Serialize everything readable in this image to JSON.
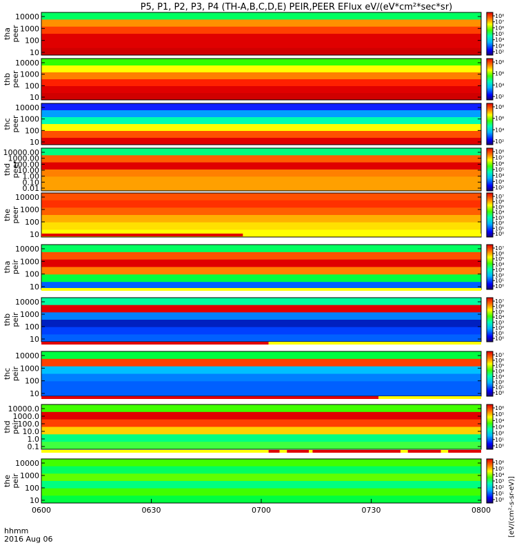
{
  "chart_data": {
    "type": "heatmap",
    "title": "P5, P1, P2, P3, P4 (TH-A,B,C,D,E) PEIR,PEER EFlux eV/(eV*cm²*sec*sr)",
    "colorbar_label": "[eV/(cm²-s-sr-eV)]",
    "x_axis": {
      "ticks": [
        "0600",
        "0630",
        "0700",
        "0730",
        "0800"
      ],
      "minutes": [
        0,
        30,
        60,
        90,
        120
      ],
      "range": [
        0,
        120
      ],
      "label_line1": "hhmm",
      "label_line2": "2016 Aug 06"
    },
    "panels": [
      {
        "name": "tha_peer",
        "probe": "tha",
        "species": "peer",
        "yticks": [
          "10000",
          "1000",
          "100",
          "10"
        ],
        "cbar_ticks": [
          "10⁸",
          "10⁷",
          "10⁶",
          "10⁵",
          "10⁴",
          "10³",
          "10²"
        ]
      },
      {
        "name": "thb_peer",
        "probe": "thb",
        "species": "peer",
        "yticks": [
          "10000",
          "1000",
          "100",
          "10"
        ],
        "cbar_ticks": [
          "10⁸",
          "10⁶",
          "10⁴",
          "10²"
        ]
      },
      {
        "name": "thc_peer",
        "probe": "thc",
        "species": "peer",
        "yticks": [
          "10000",
          "1000",
          "100",
          "10"
        ],
        "cbar_ticks": [
          "10⁸",
          "10⁶",
          "10⁴",
          "10²"
        ]
      },
      {
        "name": "thd_peer",
        "probe": "thd",
        "species": "peer",
        "yticks": [
          "10000.00",
          "1000.00",
          "100.00",
          "10.00",
          "1.00",
          "0.10",
          "0.01"
        ],
        "cbar_ticks": [
          "10⁸",
          "10⁷",
          "10⁶",
          "10⁵",
          "10⁴",
          "10³",
          "10²"
        ]
      },
      {
        "name": "the_peer",
        "probe": "the",
        "species": "peer",
        "yticks": [
          "10000",
          "1000",
          "100",
          "10"
        ],
        "cbar_ticks": [
          "10⁷",
          "10⁶",
          "10⁵",
          "10⁴",
          "10³",
          "10²",
          "10¹",
          "10⁰"
        ]
      },
      {
        "name": "tha_peir",
        "probe": "tha",
        "species": "peir",
        "yticks": [
          "10000",
          "1000",
          "100",
          "10"
        ],
        "cbar_ticks": [
          "10⁷",
          "10⁶",
          "10⁵",
          "10⁴",
          "10³",
          "10²",
          "10¹",
          "10⁰"
        ]
      },
      {
        "name": "thb_peir",
        "probe": "thb",
        "species": "peir",
        "yticks": [
          "10000",
          "1000",
          "100",
          "10"
        ],
        "cbar_ticks": [
          "10⁷",
          "10⁶",
          "10⁵",
          "10⁴",
          "10³",
          "10²",
          "10¹",
          "10⁰"
        ]
      },
      {
        "name": "thc_peir",
        "probe": "thc",
        "species": "peir",
        "yticks": [
          "10000",
          "1000",
          "100",
          "10"
        ],
        "cbar_ticks": [
          "10⁷",
          "10⁶",
          "10⁵",
          "10⁴",
          "10³",
          "10²",
          "10¹",
          "10⁰"
        ]
      },
      {
        "name": "thd_peir",
        "probe": "thd",
        "species": "peir",
        "yticks": [
          "10000.0",
          "1000.0",
          "100.0",
          "10.0",
          "1.0",
          "0.1"
        ],
        "cbar_ticks": [
          "10⁶",
          "10⁵",
          "10⁴",
          "10³",
          "10²",
          "10¹",
          "10⁰"
        ]
      },
      {
        "name": "the_peir",
        "probe": "the",
        "species": "peir",
        "yticks": [
          "10000",
          "1000",
          "100",
          "10"
        ],
        "cbar_ticks": [
          "10⁶",
          "10⁵",
          "10⁴",
          "10³",
          "10²",
          "10¹",
          "10⁰"
        ]
      }
    ],
    "mode_bars": [
      {
        "after_panel": "the_peer",
        "segments": [
          {
            "color": "#e00000",
            "start_min": 0,
            "end_min": 55
          },
          {
            "color": "#ffff00",
            "start_min": 55,
            "end_min": 120
          }
        ]
      },
      {
        "after_panel": "tha_peir",
        "segments": [
          {
            "color": "#ffff00",
            "start_min": 0,
            "end_min": 120
          }
        ]
      },
      {
        "after_panel": "thb_peir",
        "segments": [
          {
            "color": "#e00000",
            "start_min": 0,
            "end_min": 62
          },
          {
            "color": "#ffff00",
            "start_min": 62,
            "end_min": 120
          }
        ]
      },
      {
        "after_panel": "thc_peir",
        "segments": [
          {
            "color": "#e00000",
            "start_min": 0,
            "end_min": 92
          },
          {
            "color": "#ffff00",
            "start_min": 92,
            "end_min": 120
          }
        ]
      },
      {
        "after_panel": "thd_peir",
        "segments": [
          {
            "color": "#ffff00",
            "start_min": 0,
            "end_min": 62
          },
          {
            "color": "#e00000",
            "start_min": 62,
            "end_min": 65
          },
          {
            "color": "#ffff00",
            "start_min": 65,
            "end_min": 67
          },
          {
            "color": "#e00000",
            "start_min": 67,
            "end_min": 73
          },
          {
            "color": "#ffff00",
            "start_min": 73,
            "end_min": 74
          },
          {
            "color": "#e00000",
            "start_min": 74,
            "end_min": 98
          },
          {
            "color": "#ffff00",
            "start_min": 98,
            "end_min": 100
          },
          {
            "color": "#e00000",
            "start_min": 100,
            "end_min": 109
          },
          {
            "color": "#ffff00",
            "start_min": 109,
            "end_min": 111
          },
          {
            "color": "#e00000",
            "start_min": 111,
            "end_min": 120
          }
        ]
      }
    ]
  }
}
